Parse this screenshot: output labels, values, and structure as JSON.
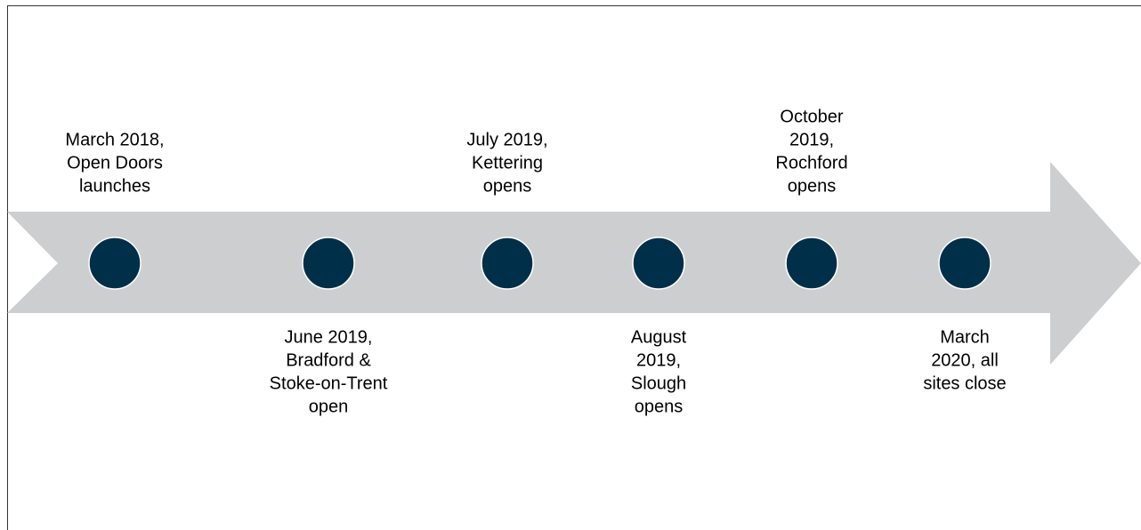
{
  "events": [
    {
      "lines": [
        "March 2018,",
        "Open Doors",
        "launches"
      ],
      "position": "above"
    },
    {
      "lines": [
        "June 2019,",
        "Bradford &",
        "Stoke-on-Trent",
        "open"
      ],
      "position": "below"
    },
    {
      "lines": [
        "July 2019,",
        "Kettering",
        "opens"
      ],
      "position": "above"
    },
    {
      "lines": [
        "August",
        "2019,",
        "Slough",
        "opens"
      ],
      "position": "below"
    },
    {
      "lines": [
        "October",
        "2019,",
        "Rochford",
        "opens"
      ],
      "position": "above"
    },
    {
      "lines": [
        "March",
        "2020, all",
        "sites close"
      ],
      "position": "below"
    }
  ]
}
